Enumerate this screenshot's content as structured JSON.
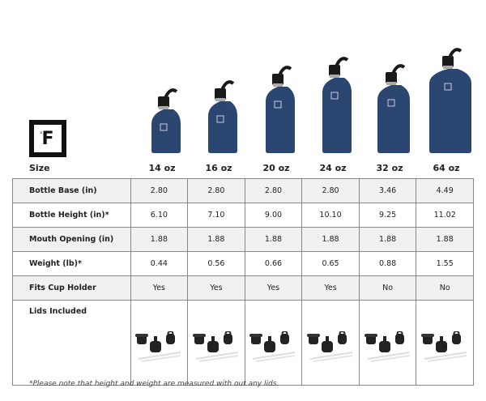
{
  "logo": {
    "text": "F",
    "degree": "°"
  },
  "header": {
    "size_label": "Size",
    "sizes": [
      "14 oz",
      "16 oz",
      "20 oz",
      "24 oz",
      "32 oz",
      "64 oz"
    ]
  },
  "colors": {
    "bottle": "#2b4670",
    "cap": "#1a1a1a",
    "row_shade": "#f1f1f1"
  },
  "rows": [
    {
      "label": "Bottle Base (in)",
      "values": [
        "2.80",
        "2.80",
        "2.80",
        "2.80",
        "3.46",
        "4.49"
      ]
    },
    {
      "label": "Bottle Height (in)*",
      "values": [
        "6.10",
        "7.10",
        "9.00",
        "10.10",
        "9.25",
        "11.02"
      ]
    },
    {
      "label": "Mouth Opening (in)",
      "values": [
        "1.88",
        "1.88",
        "1.88",
        "1.88",
        "1.88",
        "1.88"
      ]
    },
    {
      "label": "Weight (lb)*",
      "values": [
        "0.44",
        "0.56",
        "0.66",
        "0.65",
        "0.88",
        "1.55"
      ]
    },
    {
      "label": "Fits Cup Holder",
      "values": [
        "Yes",
        "Yes",
        "Yes",
        "Yes",
        "No",
        "No"
      ]
    }
  ],
  "lids": {
    "label": "Lids Included"
  },
  "footnote": "*Please note that height and weight are measured with out any lids."
}
